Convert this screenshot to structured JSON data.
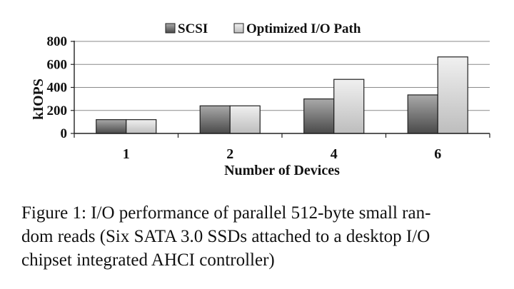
{
  "chart_data": {
    "type": "bar",
    "categories": [
      "1",
      "2",
      "4",
      "6"
    ],
    "series": [
      {
        "name": "SCSI",
        "values": [
          120,
          240,
          300,
          335
        ]
      },
      {
        "name": "Optimized I/O Path",
        "values": [
          120,
          240,
          470,
          665
        ]
      }
    ],
    "xlabel": "Number of Devices",
    "ylabel": "kIOPS",
    "ylim": [
      0,
      800
    ],
    "yticks": [
      "0",
      "200",
      "400",
      "600",
      "800"
    ],
    "grid": true,
    "legend": "top-center",
    "colors": {
      "SCSI": "#6e6e6e",
      "Optimized I/O Path": "#d6d6d6"
    }
  },
  "caption": {
    "lines": [
      "Figure 1: I/O performance of parallel 512-byte small ran-",
      "dom reads (Six SATA 3.0 SSDs attached to a desktop I/O",
      "chipset integrated AHCI controller)"
    ]
  }
}
